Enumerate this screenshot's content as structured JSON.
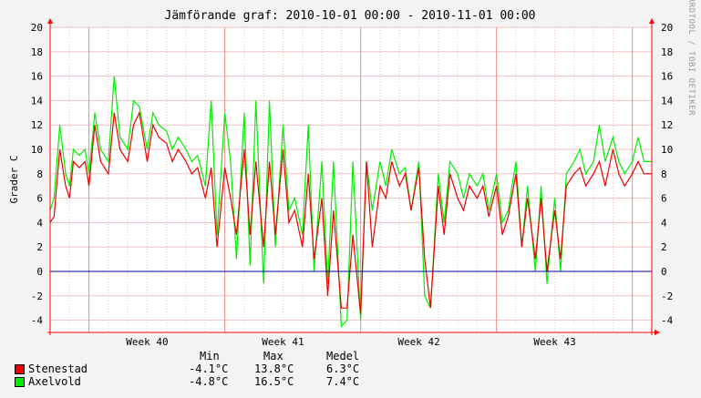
{
  "chart_data": {
    "type": "line",
    "title": "Jämförande graf: 2010-10-01 00:00 - 2010-11-01 00:00",
    "ylabel": "Grader C",
    "side_label": "RRDTOOL / TOBI OETIKER",
    "ylim": [
      -5,
      20
    ],
    "yticks": [
      "-4",
      "-2",
      "0",
      "2",
      "4",
      "6",
      "8",
      "10",
      "12",
      "14",
      "16",
      "18",
      "20"
    ],
    "xlim": [
      0,
      31
    ],
    "xticks": [
      {
        "label": "Week 40",
        "x": 5
      },
      {
        "label": "Week 41",
        "x": 12
      },
      {
        "label": "Week 42",
        "x": 19
      },
      {
        "label": "Week 43",
        "x": 26
      }
    ],
    "reference_line": 0,
    "colors": {
      "axis": "#ff0000",
      "grid": "#f0c0c0",
      "zero": "#0000aa"
    },
    "series": [
      {
        "name": "Stenestad",
        "color": "#ee0000",
        "x": [
          0.0,
          0.2,
          0.5,
          0.8,
          1.0,
          1.2,
          1.5,
          1.8,
          2.0,
          2.3,
          2.6,
          3.0,
          3.3,
          3.6,
          4.0,
          4.3,
          4.6,
          5.0,
          5.3,
          5.6,
          6.0,
          6.3,
          6.6,
          7.0,
          7.3,
          7.6,
          8.0,
          8.3,
          8.6,
          9.0,
          9.3,
          9.6,
          10.0,
          10.3,
          10.6,
          11.0,
          11.3,
          11.6,
          12.0,
          12.3,
          12.6,
          13.0,
          13.3,
          13.6,
          14.0,
          14.3,
          14.6,
          15.0,
          15.3,
          15.6,
          16.0,
          16.3,
          16.6,
          17.0,
          17.3,
          17.6,
          18.0,
          18.3,
          18.6,
          19.0,
          19.3,
          19.6,
          20.0,
          20.3,
          20.6,
          21.0,
          21.3,
          21.6,
          22.0,
          22.3,
          22.6,
          23.0,
          23.3,
          23.6,
          24.0,
          24.3,
          24.6,
          25.0,
          25.3,
          25.6,
          26.0,
          26.3,
          26.6,
          27.0,
          27.3,
          27.6,
          28.0,
          28.3,
          28.6,
          29.0,
          29.3,
          29.6,
          30.0,
          30.3,
          30.6,
          31.0
        ],
        "values": [
          4,
          4.5,
          10,
          7,
          6,
          9,
          8.5,
          9,
          7,
          12,
          9,
          8,
          13,
          10,
          9,
          12,
          13,
          9,
          12,
          11,
          10.5,
          9,
          10,
          9,
          8,
          8.5,
          6,
          8.5,
          2,
          8.5,
          6,
          3,
          10,
          3,
          9,
          2,
          9,
          3,
          10,
          4,
          5,
          2,
          8,
          1,
          6,
          -2,
          5,
          -3,
          -3,
          3,
          -3.5,
          9,
          2,
          7,
          6,
          9,
          7,
          8,
          5,
          8.5,
          1,
          -3,
          7,
          3,
          8,
          6,
          5,
          7,
          6,
          7,
          4.5,
          7,
          3,
          4.5,
          8,
          2,
          6,
          1,
          6,
          0,
          5,
          1,
          7,
          8,
          8.5,
          7,
          8,
          9,
          7,
          10,
          8,
          7,
          8,
          9,
          8,
          8
        ]
      },
      {
        "name": "Axelvold",
        "color": "#00ee00",
        "x": [
          0.0,
          0.2,
          0.5,
          0.8,
          1.0,
          1.2,
          1.5,
          1.8,
          2.0,
          2.3,
          2.6,
          3.0,
          3.3,
          3.6,
          4.0,
          4.3,
          4.6,
          5.0,
          5.3,
          5.6,
          6.0,
          6.3,
          6.6,
          7.0,
          7.3,
          7.6,
          8.0,
          8.3,
          8.6,
          9.0,
          9.3,
          9.6,
          10.0,
          10.3,
          10.6,
          11.0,
          11.3,
          11.6,
          12.0,
          12.3,
          12.6,
          13.0,
          13.3,
          13.6,
          14.0,
          14.3,
          14.6,
          15.0,
          15.3,
          15.6,
          16.0,
          16.3,
          16.6,
          17.0,
          17.3,
          17.6,
          18.0,
          18.3,
          18.6,
          19.0,
          19.3,
          19.6,
          20.0,
          20.3,
          20.6,
          21.0,
          21.3,
          21.6,
          22.0,
          22.3,
          22.6,
          23.0,
          23.3,
          23.6,
          24.0,
          24.3,
          24.6,
          25.0,
          25.3,
          25.6,
          26.0,
          26.3,
          26.6,
          27.0,
          27.3,
          27.6,
          28.0,
          28.3,
          28.6,
          29.0,
          29.3,
          29.6,
          30.0,
          30.3,
          30.6,
          31.0
        ],
        "values": [
          5,
          6,
          12,
          8,
          7,
          10,
          9.5,
          10,
          8,
          13,
          10,
          9,
          16,
          11,
          10,
          14,
          13.5,
          10,
          13,
          12,
          11.5,
          10,
          11,
          10,
          9,
          9.5,
          7,
          14,
          3,
          13,
          9,
          1,
          13,
          0.5,
          14,
          -1,
          14,
          2,
          12,
          5,
          6,
          3,
          12,
          0,
          9,
          -1,
          9,
          -4.5,
          -4,
          9,
          -4,
          9,
          5,
          9,
          7,
          10,
          8,
          8.5,
          5,
          9,
          -2,
          -3,
          8,
          4,
          9,
          8,
          6,
          8,
          7,
          8,
          5,
          8,
          4,
          5,
          9,
          2,
          7,
          0,
          7,
          -1,
          6,
          0,
          8,
          9,
          10,
          8,
          9,
          12,
          9,
          11,
          9,
          8,
          9,
          11,
          9,
          9
        ]
      }
    ]
  },
  "legend": {
    "headers": {
      "min": "Min",
      "max": "Max",
      "mean": "Medel"
    },
    "rows": [
      {
        "name": "Stenestad",
        "color": "#ee0000",
        "min": "-4.1°C",
        "max": "13.8°C",
        "mean": "6.3°C"
      },
      {
        "name": "Axelvold",
        "color": "#00ee00",
        "min": "-4.8°C",
        "max": "16.5°C",
        "mean": "7.4°C"
      }
    ]
  }
}
